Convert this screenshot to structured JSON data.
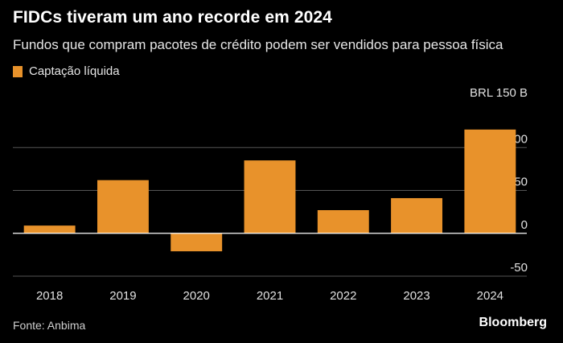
{
  "header": {
    "title": "FIDCs tiveram um ano recorde em 2024",
    "subtitle": "Fundos que compram pacotes de crédito podem ser vendidos para pessoa física"
  },
  "footer": {
    "source": "Fonte: Anbima",
    "brand": "Bloomberg"
  },
  "colors": {
    "bar": "#E8922B",
    "background": "#000000"
  },
  "chart_data": {
    "type": "bar",
    "categories": [
      "2018",
      "2019",
      "2020",
      "2021",
      "2022",
      "2023",
      "2024"
    ],
    "series": [
      {
        "name": "Captação líquida",
        "values": [
          9,
          62,
          -21,
          85,
          27,
          41,
          121
        ]
      }
    ],
    "ylim": [
      -50,
      150
    ],
    "yticks": [
      {
        "value": 150,
        "label": "BRL 150 B"
      },
      {
        "value": 100,
        "label": "100"
      },
      {
        "value": 50,
        "label": "50"
      },
      {
        "value": 0,
        "label": "0"
      },
      {
        "value": -50,
        "label": "-50"
      }
    ],
    "grid": true,
    "legend_position": "top-left",
    "y_axis_side": "right"
  }
}
